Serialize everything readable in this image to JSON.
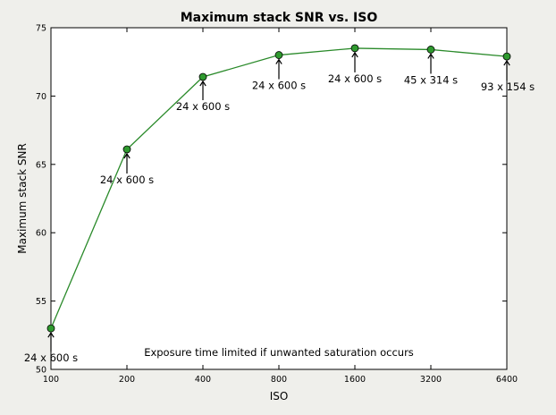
{
  "chart_data": {
    "type": "line",
    "title": "Maximum stack SNR vs. ISO",
    "xlabel": "ISO",
    "ylabel": "Maximum stack SNR",
    "x_scale": "log2",
    "xlim": [
      100,
      6400
    ],
    "ylim": [
      50,
      75
    ],
    "x_ticks": [
      "100",
      "200",
      "400",
      "800",
      "1600",
      "3200",
      "6400"
    ],
    "y_ticks": [
      "50",
      "55",
      "60",
      "65",
      "70",
      "75"
    ],
    "grid": false,
    "line_color": "#2a8a2a",
    "marker_color": "#2f9a2f",
    "background_color": "#efefeb",
    "series": [
      {
        "x": [
          100,
          200,
          400,
          800,
          1600,
          3200,
          6400
        ],
        "y": [
          53.0,
          66.1,
          71.4,
          73.0,
          73.5,
          73.4,
          72.9
        ]
      }
    ],
    "annotations": [
      "24 x 600 s",
      "24 x 600 s",
      "24 x 600 s",
      "24 x 600 s",
      "24 x 600 s",
      "45 x 314 s",
      "93 x 154 s"
    ],
    "footnote": "Exposure time limited if unwanted saturation occurs"
  }
}
